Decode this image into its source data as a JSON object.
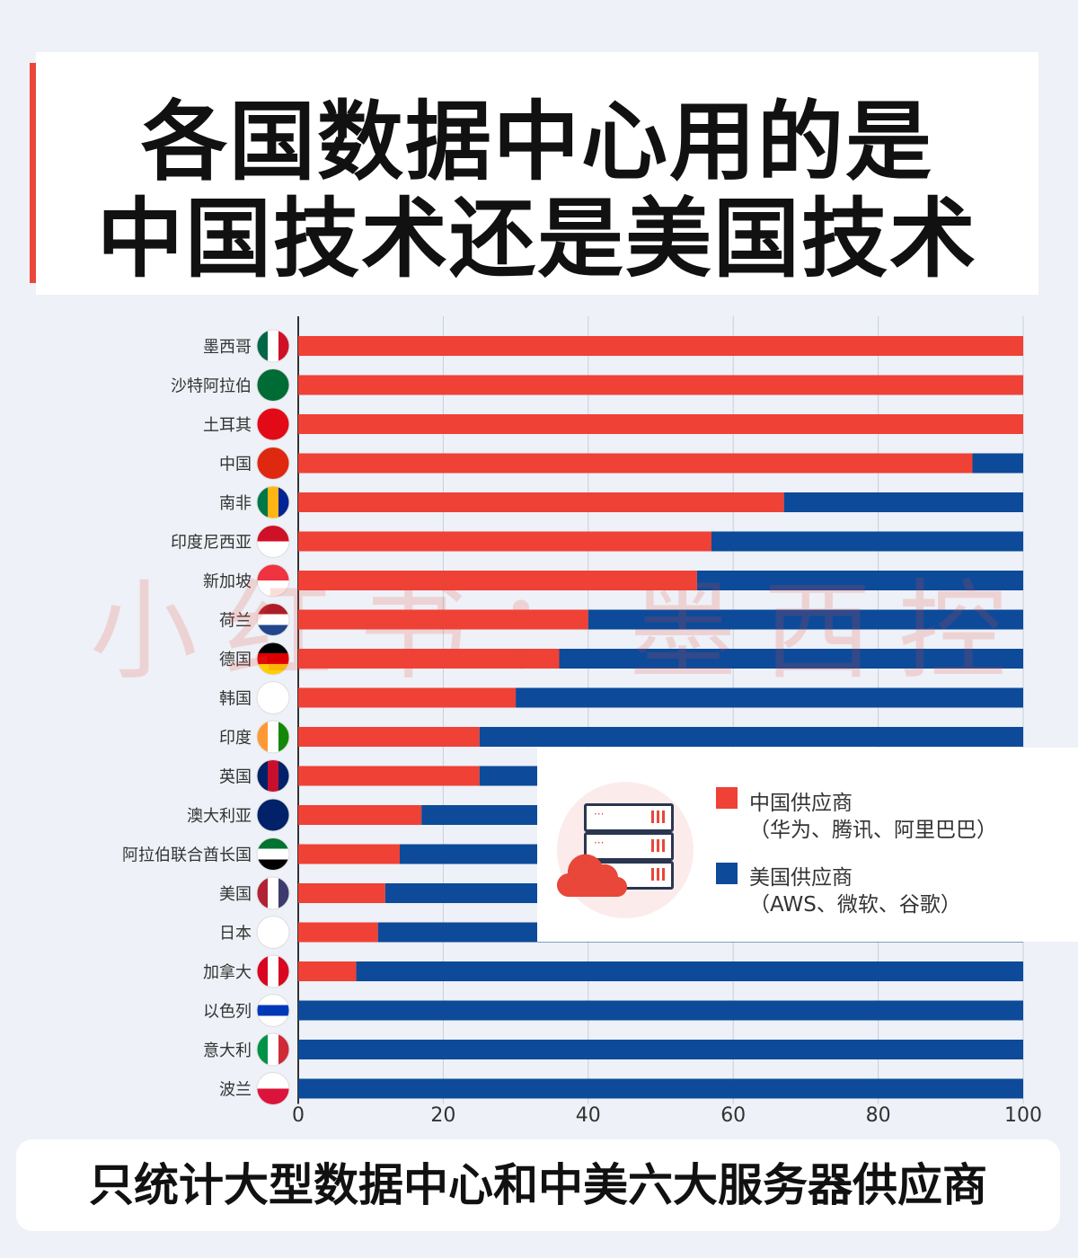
{
  "title": {
    "line1": "各国数据中心用的是",
    "line2": "中国技术还是美国技术"
  },
  "footer": "只统计大型数据中心和中美六大服务器供应商",
  "watermark": "小红书：墨西控",
  "chart_data": {
    "type": "bar",
    "stacked": true,
    "orientation": "horizontal",
    "xlim": [
      0,
      100
    ],
    "xticks": [
      "0",
      "20",
      "40",
      "60",
      "80",
      "100"
    ],
    "grid": true,
    "legend_placement": "bottom-right",
    "categories": [
      "墨西哥",
      "沙特阿拉伯",
      "土耳其",
      "中国",
      "南非",
      "印度尼西亚",
      "新加坡",
      "荷兰",
      "德国",
      "韩国",
      "印度",
      "英国",
      "澳大利亚",
      "阿拉伯联合酋长国",
      "美国",
      "日本",
      "加拿大",
      "以色列",
      "意大利",
      "波兰"
    ],
    "series": [
      {
        "name": "中国供应商",
        "sub": "（华为、腾讯、阿里巴巴）",
        "color": "#ef4136",
        "values": [
          100,
          100,
          100,
          93,
          67,
          57,
          55,
          40,
          36,
          30,
          25,
          25,
          17,
          14,
          12,
          11,
          8,
          0,
          0,
          0
        ]
      },
      {
        "name": "美国供应商",
        "sub": "（AWS、微软、谷歌）",
        "color": "#0d4a9a",
        "values": [
          0,
          0,
          0,
          7,
          33,
          43,
          45,
          60,
          64,
          70,
          75,
          75,
          83,
          86,
          88,
          89,
          92,
          100,
          100,
          100
        ]
      }
    ],
    "flag_colors": [
      [
        "#006847",
        "#ffffff",
        "#ce1126"
      ],
      [
        "#006c35",
        "#006c35",
        "#006c35"
      ],
      [
        "#e30a17",
        "#e30a17",
        "#e30a17"
      ],
      [
        "#de2910",
        "#de2910",
        "#de2910"
      ],
      [
        "#007749",
        "#ffb612",
        "#002395"
      ],
      [
        "#ce1126",
        "#ffffff"
      ],
      [
        "#ef3340",
        "#ffffff"
      ],
      [
        "#ae1c28",
        "#ffffff",
        "#21468b"
      ],
      [
        "#000000",
        "#dd0000",
        "#ffce00"
      ],
      [
        "#ffffff",
        "#ffffff"
      ],
      [
        "#ff9933",
        "#ffffff",
        "#138808"
      ],
      [
        "#012169",
        "#c8102e",
        "#012169"
      ],
      [
        "#012169",
        "#012169"
      ],
      [
        "#00732f",
        "#ffffff",
        "#000000"
      ],
      [
        "#b22234",
        "#ffffff",
        "#3c3b6e"
      ],
      [
        "#ffffff",
        "#ffffff"
      ],
      [
        "#d80621",
        "#ffffff",
        "#d80621"
      ],
      [
        "#ffffff",
        "#0038b8",
        "#ffffff"
      ],
      [
        "#009246",
        "#ffffff",
        "#ce2b37"
      ],
      [
        "#ffffff",
        "#dc143c"
      ]
    ]
  }
}
